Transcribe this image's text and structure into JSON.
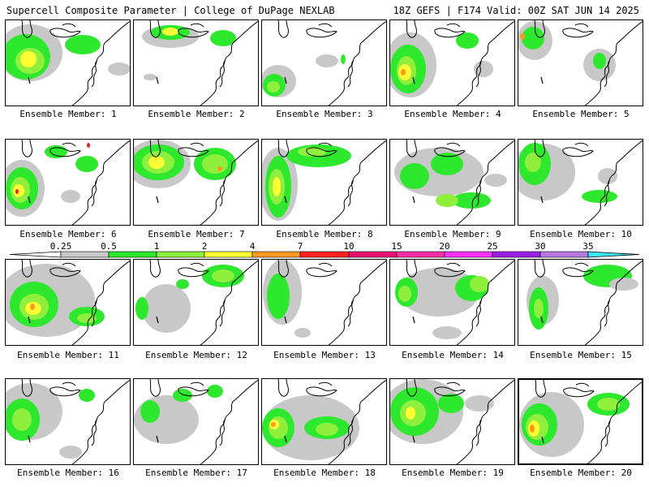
{
  "header": {
    "left": "Supercell Composite Parameter | College of DuPage NEXLAB",
    "right": "18Z GEFS | F174 Valid: 00Z SAT JUN 14 2025"
  },
  "member_label_prefix": "Ensemble Member: ",
  "members": [
    1,
    2,
    3,
    4,
    5,
    6,
    7,
    8,
    9,
    10,
    11,
    12,
    13,
    14,
    15,
    16,
    17,
    18,
    19,
    20
  ],
  "selected_member": 20,
  "legend": {
    "ticks": [
      "0.25",
      "0.5",
      "1",
      "2",
      "4",
      "7",
      "10",
      "15",
      "20",
      "25",
      "30",
      "35"
    ],
    "colors": [
      "#c8c8c8",
      "#2ee82e",
      "#8ef03c",
      "#ffff33",
      "#ff9a1e",
      "#ff2020",
      "#e8106e",
      "#ff2ca8",
      "#ff30ff",
      "#9a20e8",
      "#b478e0",
      "#3ce8f0"
    ]
  },
  "contour_colors": {
    "gray": "#c8c8c8",
    "green": "#2ee82e",
    "lightgreen": "#8ef03c",
    "yellow": "#ffff33",
    "orange": "#ff9a1e",
    "red": "#e82020"
  }
}
